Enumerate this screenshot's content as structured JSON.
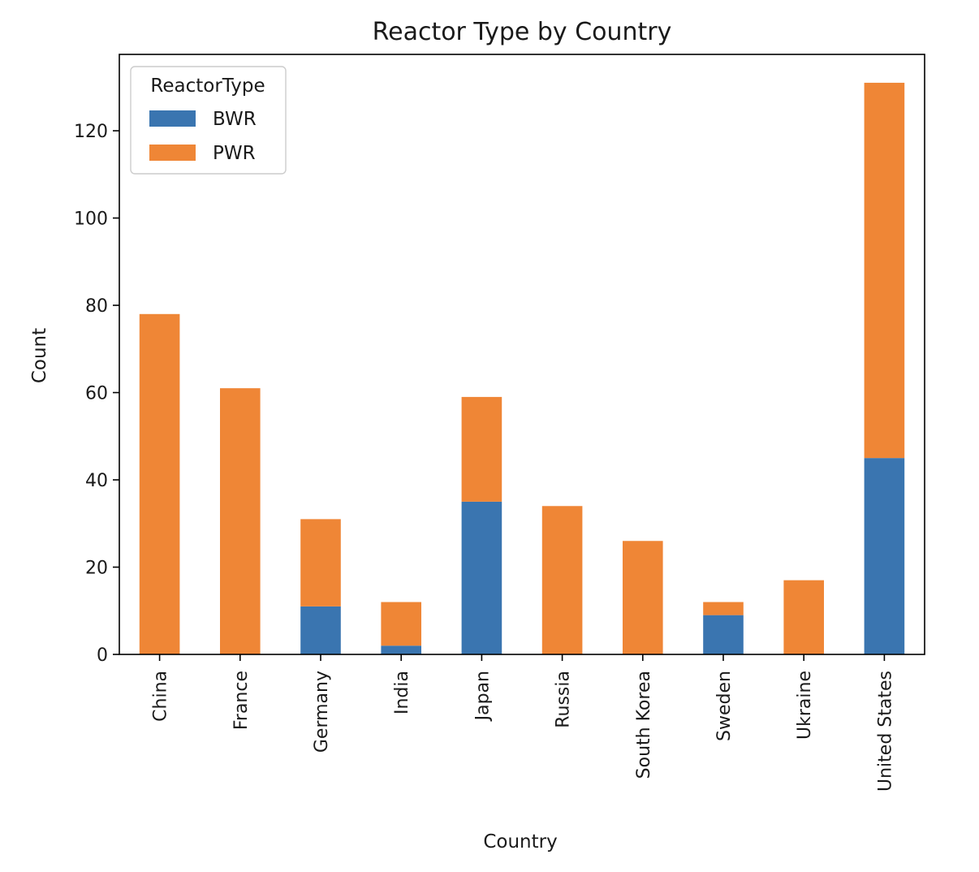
{
  "chart_data": {
    "type": "bar",
    "stacked": true,
    "title": "Reactor Type by Country",
    "xlabel": "Country",
    "ylabel": "Count",
    "ylim": [
      0,
      137.5
    ],
    "yticks": [
      0,
      20,
      40,
      60,
      80,
      100,
      120
    ],
    "grid": false,
    "legend": {
      "title": "ReactorType",
      "placement": "top-left"
    },
    "categories": [
      "China",
      "France",
      "Germany",
      "India",
      "Japan",
      "Russia",
      "South Korea",
      "Sweden",
      "Ukraine",
      "United States"
    ],
    "series": [
      {
        "name": "BWR",
        "color": "#3a75b0",
        "values": [
          0,
          0,
          11,
          2,
          35,
          0,
          0,
          9,
          0,
          45
        ]
      },
      {
        "name": "PWR",
        "color": "#ef8636",
        "values": [
          78,
          61,
          20,
          10,
          24,
          34,
          26,
          3,
          17,
          86
        ]
      }
    ]
  }
}
